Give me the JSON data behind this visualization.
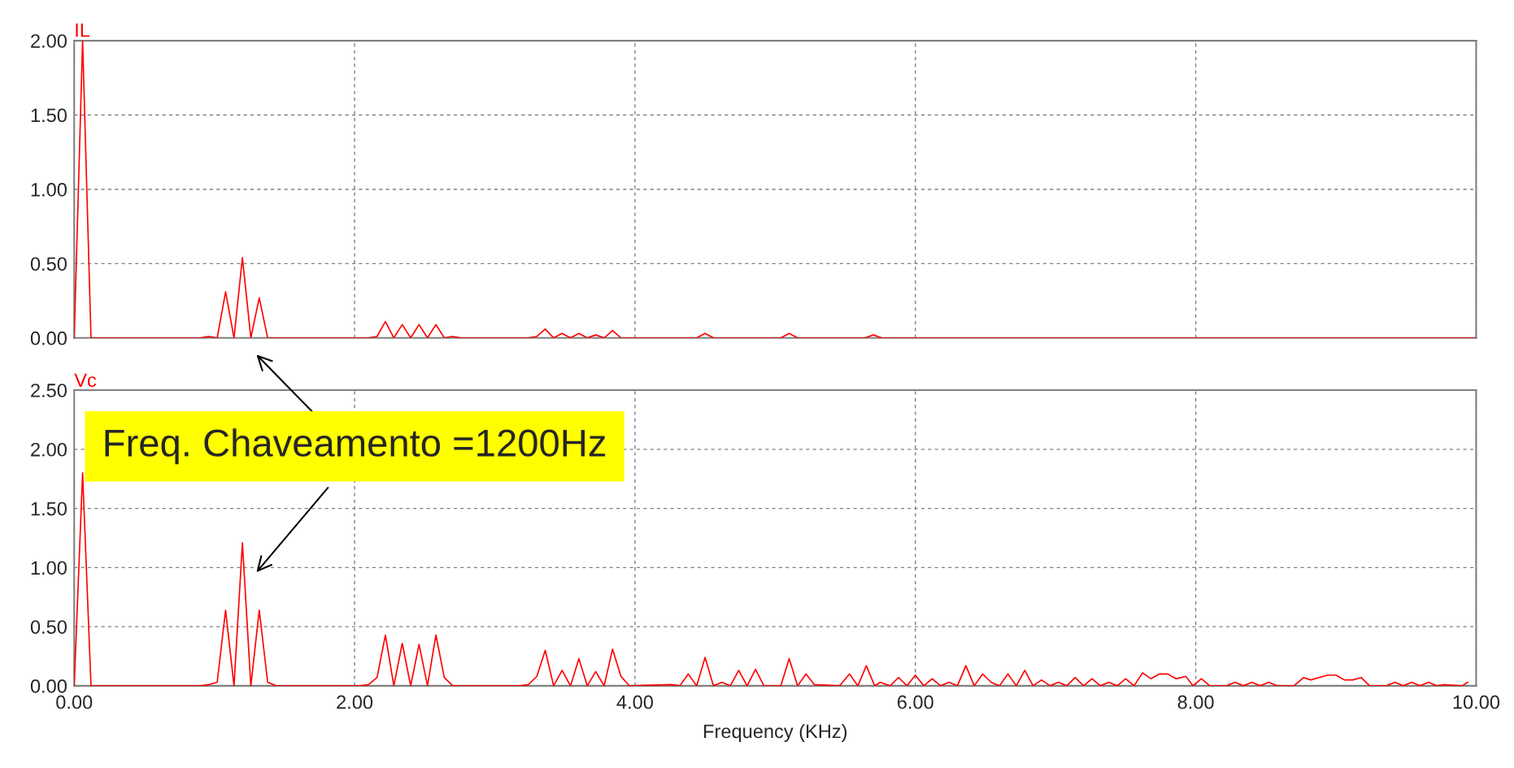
{
  "chart_data": [
    {
      "type": "line",
      "title": "IL",
      "xlim": [
        0,
        10
      ],
      "ylim": [
        0,
        2
      ],
      "xticks": [
        {
          "value": 0,
          "label": null
        },
        {
          "value": 2,
          "label": null
        },
        {
          "value": 4,
          "label": null
        },
        {
          "value": 6,
          "label": null
        },
        {
          "value": 8,
          "label": null
        },
        {
          "value": 10,
          "label": null
        }
      ],
      "yticks": [
        {
          "value": 0,
          "label": "0.00"
        },
        {
          "value": 0.5,
          "label": "0.50"
        },
        {
          "value": 1,
          "label": "1.00"
        },
        {
          "value": 1.5,
          "label": "1.50"
        },
        {
          "value": 2,
          "label": "2.00"
        }
      ],
      "tick_labels": "y",
      "grid": true,
      "legend": false,
      "series": [
        {
          "color": "#ff0000",
          "x": [
            0,
            0.06,
            0.12,
            0.9,
            0.96,
            1.02,
            1.08,
            1.14,
            1.2,
            1.26,
            1.32,
            1.38,
            2.1,
            2.16,
            2.22,
            2.28,
            2.34,
            2.4,
            2.46,
            2.52,
            2.58,
            2.64,
            2.7,
            2.76,
            3.24,
            3.3,
            3.36,
            3.42,
            3.48,
            3.54,
            3.6,
            3.66,
            3.72,
            3.78,
            3.84,
            3.9,
            4.44,
            4.5,
            4.56,
            5.04,
            5.1,
            5.16,
            5.64,
            5.7,
            5.76,
            10
          ],
          "values": [
            0,
            2.0,
            0,
            0,
            0.01,
            0,
            0.31,
            0,
            0.54,
            0,
            0.27,
            0,
            0,
            0.01,
            0.11,
            0,
            0.09,
            0,
            0.09,
            0,
            0.09,
            0,
            0.01,
            0,
            0,
            0.01,
            0.06,
            0,
            0.03,
            0,
            0.03,
            0,
            0.02,
            0,
            0.05,
            0,
            0,
            0.03,
            0,
            0,
            0.03,
            0,
            0,
            0.02,
            0,
            0
          ]
        }
      ]
    },
    {
      "type": "line",
      "title": "Vc",
      "xlabel": "Frequency (KHz)",
      "xlim": [
        0,
        10
      ],
      "ylim": [
        0,
        2.5
      ],
      "xticks": [
        {
          "value": 0,
          "label": "0.00"
        },
        {
          "value": 2,
          "label": "2.00"
        },
        {
          "value": 4,
          "label": "4.00"
        },
        {
          "value": 6,
          "label": "6.00"
        },
        {
          "value": 8,
          "label": "8.00"
        },
        {
          "value": 10,
          "label": "10.00"
        }
      ],
      "yticks": [
        {
          "value": 0,
          "label": "0.00"
        },
        {
          "value": 0.5,
          "label": "0.50"
        },
        {
          "value": 1,
          "label": "1.00"
        },
        {
          "value": 1.5,
          "label": "1.50"
        },
        {
          "value": 2,
          "label": "2.00"
        },
        {
          "value": 2.5,
          "label": "2.50"
        }
      ],
      "grid": true,
      "legend": false,
      "annotations": [
        "Freq. Chaveamento =1200Hz"
      ],
      "series": [
        {
          "color": "#ff0000",
          "x": [
            0,
            0.06,
            0.12,
            0.9,
            0.96,
            1.02,
            1.08,
            1.14,
            1.2,
            1.26,
            1.32,
            1.38,
            1.44,
            2.04,
            2.1,
            2.16,
            2.22,
            2.28,
            2.34,
            2.4,
            2.46,
            2.52,
            2.58,
            2.64,
            2.7,
            3.18,
            3.24,
            3.3,
            3.36,
            3.42,
            3.48,
            3.54,
            3.6,
            3.66,
            3.72,
            3.78,
            3.84,
            3.9,
            3.96,
            4.26,
            4.32,
            4.38,
            4.44,
            4.5,
            4.56,
            4.62,
            4.68,
            4.74,
            4.8,
            4.86,
            4.92,
            5.04,
            5.1,
            5.16,
            5.22,
            5.28,
            5.46,
            5.53,
            5.59,
            5.65,
            5.71,
            5.75,
            5.82,
            5.88,
            5.94,
            6.0,
            6.06,
            6.12,
            6.18,
            6.24,
            6.3,
            6.36,
            6.42,
            6.48,
            6.54,
            6.6,
            6.66,
            6.72,
            6.78,
            6.84,
            6.9,
            6.96,
            7.02,
            7.08,
            7.14,
            7.2,
            7.26,
            7.32,
            7.38,
            7.44,
            7.5,
            7.56,
            7.62,
            7.68,
            7.74,
            7.8,
            7.86,
            7.93,
            7.98,
            8.04,
            8.1,
            8.22,
            8.28,
            8.34,
            8.4,
            8.46,
            8.52,
            8.58,
            8.7,
            8.77,
            8.82,
            8.94,
            9.0,
            9.06,
            9.12,
            9.18,
            9.24,
            9.36,
            9.42,
            9.48,
            9.54,
            9.6,
            9.66,
            9.72,
            9.78,
            9.9,
            9.94
          ],
          "values": [
            0,
            1.8,
            0,
            0,
            0.01,
            0.03,
            0.64,
            0,
            1.21,
            0,
            0.64,
            0.03,
            0,
            0,
            0.01,
            0.07,
            0.43,
            0,
            0.36,
            0,
            0.35,
            0,
            0.43,
            0.07,
            0,
            0,
            0.01,
            0.08,
            0.3,
            0,
            0.13,
            0,
            0.23,
            0,
            0.12,
            0,
            0.31,
            0.08,
            0,
            0.01,
            0,
            0.1,
            0,
            0.24,
            0,
            0.03,
            0,
            0.13,
            0,
            0.14,
            0,
            0,
            0.23,
            0,
            0.1,
            0.01,
            0,
            0.1,
            0,
            0.17,
            0,
            0.03,
            0,
            0.07,
            0,
            0.09,
            0,
            0.06,
            0,
            0.03,
            0,
            0.17,
            0,
            0.1,
            0.03,
            0,
            0.1,
            0,
            0.13,
            0,
            0.05,
            0,
            0.03,
            0,
            0.07,
            0,
            0.06,
            0,
            0.03,
            0,
            0.06,
            0,
            0.11,
            0.06,
            0.1,
            0.1,
            0.06,
            0.08,
            0,
            0.06,
            0,
            0,
            0.03,
            0,
            0.03,
            0,
            0.03,
            0,
            0,
            0.07,
            0.05,
            0.09,
            0.09,
            0.05,
            0.05,
            0.07,
            0,
            0,
            0.03,
            0,
            0.03,
            0,
            0.03,
            0,
            0.01,
            0,
            0.03
          ]
        }
      ]
    }
  ]
}
